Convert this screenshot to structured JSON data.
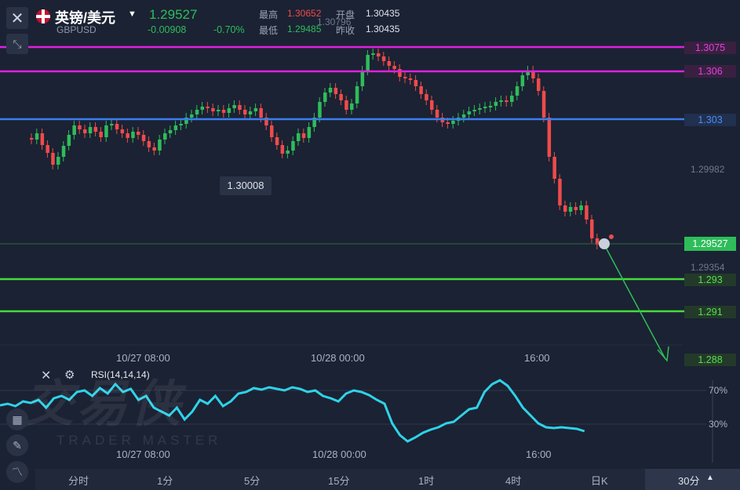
{
  "header": {
    "symbol": "英镑/美元",
    "code": "GBPUSD",
    "price": "1.29527",
    "change": "-0.00908",
    "change_pct": "-0.70%",
    "high_label": "最高",
    "high": "1.30652",
    "open_label": "开盘",
    "open": "1.30435",
    "low_label": "最低",
    "low": "1.29485",
    "prev_label": "昨收",
    "prev": "1.30435"
  },
  "levels": [
    {
      "label": "1.3075",
      "color": "#e020e0"
    },
    {
      "label": "1.306",
      "color": "#e020e0"
    },
    {
      "label": "1.303",
      "color": "#3a7ff0"
    },
    {
      "label": "1.293",
      "color": "#45dd3a"
    },
    {
      "label": "1.291",
      "color": "#45dd3a"
    },
    {
      "label": "1.288",
      "color": "#45dd3a"
    }
  ],
  "axis_labels": {
    "top_high": "1.30796",
    "mid": "1.29982",
    "low": "1.29354",
    "current": "1.29527",
    "min_marker": "1.30008"
  },
  "time_labels": {
    "main": [
      "10/27 08:00",
      "10/28 00:00",
      "16:00"
    ],
    "rsi": [
      "10/27 08:00",
      "10/28 00:00",
      "16:00"
    ]
  },
  "rsi": {
    "label": "RSI(14,14,14)",
    "levels": [
      "70%",
      "30%"
    ],
    "color": "#2fd2e8"
  },
  "timeframes": [
    "分时",
    "1分",
    "5分",
    "15分",
    "1时",
    "4时",
    "日K"
  ],
  "timeframe_selected": "30分",
  "watermark": {
    "cn": "交易侠",
    "en": "TRADER MASTER"
  },
  "colors": {
    "up": "#2ebd5a",
    "down": "#ef4b4b",
    "bg": "#1b2233"
  }
}
